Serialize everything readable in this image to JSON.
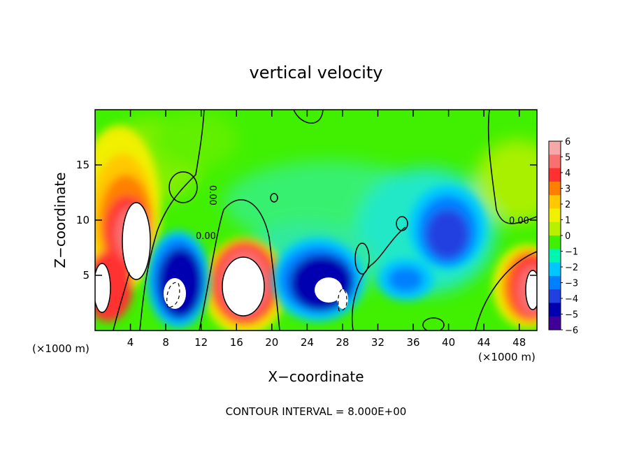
{
  "chart_data": {
    "type": "heatmap",
    "title": "vertical velocity",
    "xlabel": "X−coordinate",
    "ylabel": "Z−coordinate",
    "x_unit_left": "(×1000 m)",
    "x_unit_right": "(×1000 m)",
    "xlim": [
      0,
      50
    ],
    "ylim": [
      0,
      20
    ],
    "x_ticks": [
      4,
      8,
      12,
      16,
      20,
      24,
      28,
      32,
      36,
      40,
      44,
      48
    ],
    "y_ticks": [
      5,
      10,
      15
    ],
    "colorbar": {
      "min": -6,
      "max": 6,
      "labels": [
        "6",
        "5",
        "4",
        "3",
        "2",
        "1",
        "0",
        "−1",
        "−2",
        "−3",
        "−4",
        "−5",
        "−6"
      ],
      "label_values": [
        6,
        5,
        4,
        3,
        2,
        1,
        0,
        -1,
        -2,
        -3,
        -4,
        -5,
        -6
      ],
      "colors": [
        "#f6a8a8",
        "#f87070",
        "#ff3030",
        "#ff8000",
        "#ffc800",
        "#f0f000",
        "#b8f000",
        "#40f000",
        "#00f5b0",
        "#00c8ff",
        "#0080ff",
        "#2040e0",
        "#0000b0",
        "#400098"
      ]
    },
    "contour_labels": [
      "0.00",
      "0.00",
      "0.00"
    ],
    "contour_interval_text": "CONTOUR INTERVAL = 8.000E+00",
    "features": [
      {
        "x": 2.5,
        "z": 10,
        "w": 6.5,
        "sign": 1
      },
      {
        "x": 5,
        "z": 9,
        "w": 4,
        "sign": 1
      },
      {
        "x": 1,
        "z": 4,
        "w": 3,
        "sign": 1
      },
      {
        "x": 17,
        "z": 4,
        "w": 6,
        "sign": 1
      },
      {
        "x": 47.5,
        "z": 4,
        "w": 3.5,
        "sign": 1
      },
      {
        "x": 10,
        "z": 4,
        "w": -4.5,
        "sign": -1
      },
      {
        "x": 26,
        "z": 3.5,
        "w": -5,
        "sign": -1
      },
      {
        "x": 39,
        "z": 8,
        "w": -4,
        "sign": -1
      },
      {
        "x": 35,
        "z": 5,
        "w": -3,
        "sign": -1
      },
      {
        "x": 3,
        "z": 16,
        "w": 2,
        "sign": 1
      },
      {
        "x": 48,
        "z": 13,
        "w": 2,
        "sign": 1
      }
    ]
  }
}
